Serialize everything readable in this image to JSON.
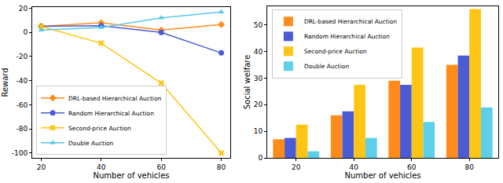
{
  "chart_data": [
    {
      "type": "line",
      "x": [
        20,
        40,
        60,
        80
      ],
      "xlim": [
        17,
        83
      ],
      "xticks": [
        20,
        40,
        60,
        80
      ],
      "ylim": [
        -104,
        21
      ],
      "yticks": [
        -100,
        -80,
        -60,
        -40,
        -20,
        0,
        20
      ],
      "x_label": "Number of vehicles",
      "y_label": "Reward",
      "grid": false,
      "legend": "lower left",
      "series": [
        {
          "name": "DRL-based Hierarchical Auction",
          "color": "#ff8c1a",
          "marker": "diamond",
          "values": [
            5,
            8,
            2,
            6.5
          ]
        },
        {
          "name": "Random Hierarchical Auction",
          "color": "#4a5bd4",
          "marker": "circle",
          "values": [
            5,
            5.5,
            0,
            -17
          ]
        },
        {
          "name": "Second-price Auction",
          "color": "#ffc515",
          "marker": "x",
          "values": [
            5,
            -9,
            -42,
            -100
          ]
        },
        {
          "name": "Double Auction",
          "color": "#5bc8e8",
          "marker": "triangle-up",
          "values": [
            2,
            4,
            12,
            17
          ]
        }
      ]
    },
    {
      "type": "bar",
      "categories": [
        "20",
        "40",
        "60",
        "80"
      ],
      "ylim": [
        0,
        57
      ],
      "yticks": [
        0,
        10,
        20,
        30,
        40,
        50
      ],
      "x_label": "Number of vehicles",
      "y_label": "Social welfare",
      "grid": false,
      "legend": "upper left",
      "series": [
        {
          "name": "DRL-based Hierarchical Auction",
          "color": "#ff8c1a",
          "values": [
            7,
            16,
            29,
            35
          ]
        },
        {
          "name": "Random Hierarchical Auction",
          "color": "#4a5bd4",
          "values": [
            7.5,
            17.5,
            27.5,
            38.5
          ]
        },
        {
          "name": "Second-price Auction",
          "color": "#ffc515",
          "values": [
            12.5,
            27.5,
            41.5,
            56
          ]
        },
        {
          "name": "Double Auction",
          "color": "#5bd0e8",
          "values": [
            2.5,
            7.5,
            13.5,
            19
          ]
        }
      ]
    }
  ]
}
